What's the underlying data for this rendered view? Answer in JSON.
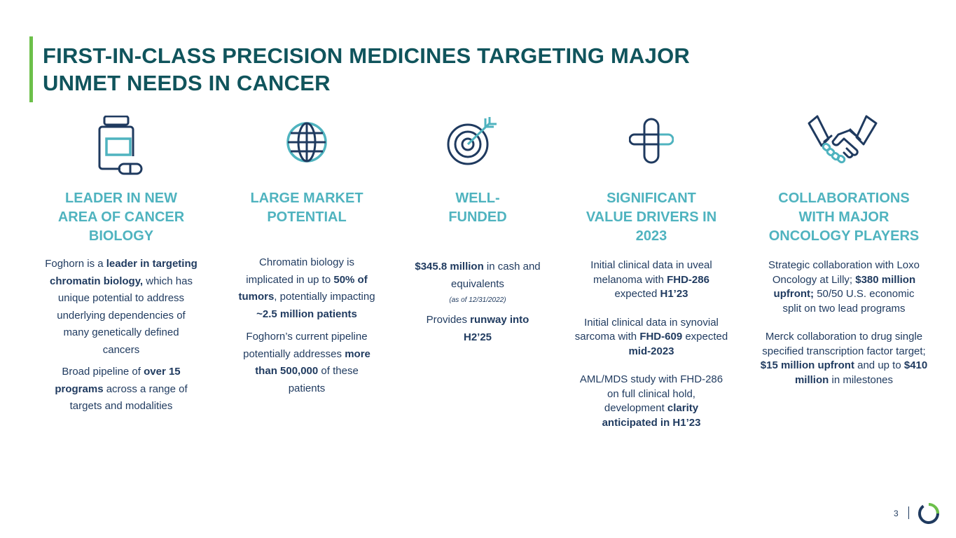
{
  "title": {
    "line1": "FIRST-IN-CLASS PRECISION MEDICINES TARGETING MAJOR",
    "line2": "UNMET NEEDS IN CANCER"
  },
  "columns": [
    {
      "icon": "medicine-bottle-icon",
      "heading": [
        "LEADER IN NEW",
        "AREA OF CANCER",
        "BIOLOGY"
      ],
      "p1": {
        "a": "Foghorn is a ",
        "b": "leader in targeting chromatin biology,",
        "c": " which has unique potential to address underlying dependencies of many genetically defined cancers"
      },
      "p2": {
        "a": "Broad pipeline of ",
        "b": "over 15 programs",
        "c": " across a range of targets and modalities"
      }
    },
    {
      "icon": "globe-icon",
      "heading": [
        "LARGE MARKET",
        "POTENTIAL"
      ],
      "p1": {
        "a": "Chromatin biology is implicated in up to ",
        "b": "50% of tumors",
        "c": ", potentially impacting ",
        "d": "~2.5 million patients"
      },
      "p2": {
        "a": "Foghorn’s current pipeline potentially addresses ",
        "b": "more than 500,000",
        "c": " of these patients"
      }
    },
    {
      "icon": "target-icon",
      "heading": [
        "WELL-",
        "FUNDED"
      ],
      "p1": {
        "a": "$345.8 million",
        "b": " in cash and equivalents"
      },
      "note": "(as of 12/31/2022)",
      "p2": {
        "a": "Provides ",
        "b": "runway into H2’25"
      }
    },
    {
      "icon": "medical-cross-icon",
      "heading": [
        "SIGNIFICANT",
        "VALUE DRIVERS IN",
        "2023"
      ],
      "p1": {
        "a": "Initial clinical data in uveal melanoma with ",
        "b": "FHD-286",
        "c": " expected ",
        "d": "H1’23"
      },
      "p2": {
        "a": "Initial clinical data in synovial sarcoma with ",
        "b": "FHD-609",
        "c": " expected ",
        "d": "mid-2023"
      },
      "p3": {
        "a": "AML/MDS study with FHD-286 on full clinical hold, development ",
        "b": "clarity anticipated in H1’23"
      }
    },
    {
      "icon": "handshake-icon",
      "heading": [
        "COLLABORATIONS",
        "WITH MAJOR",
        "ONCOLOGY PLAYERS"
      ],
      "p1": {
        "a": "Strategic collaboration with Loxo Oncology at Lilly; ",
        "b": "$380 million upfront;",
        "c": " 50/50 U.S. economic split on two lead programs"
      },
      "p2": {
        "a": "Merck collaboration to drug single specified transcription factor target; ",
        "b": "$15 million upfront",
        "c": " and up to ",
        "d": "$410 million",
        "e": " in milestones"
      }
    }
  ],
  "footer": {
    "page_number": "3",
    "logo": "foghorn-logo-icon"
  },
  "colors": {
    "title": "#10545c",
    "accent_bar": "#6cc04a",
    "heading": "#4fb3bf",
    "body": "#1f3a5f",
    "icon_dark": "#1f3a5f",
    "icon_light": "#4fb3bf"
  }
}
